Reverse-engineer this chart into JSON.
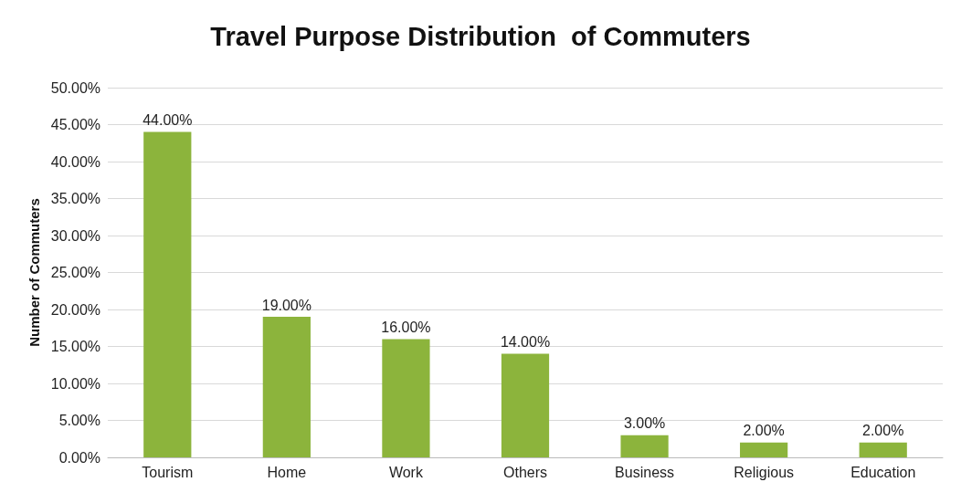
{
  "chart_data": {
    "type": "bar",
    "title": "Travel Purpose Distribution  of Commuters",
    "ylabel": "Number of Commuters",
    "categories": [
      "Tourism",
      "Home",
      "Work",
      "Others",
      "Business",
      "Religious",
      "Education"
    ],
    "values": [
      44,
      19,
      16,
      14,
      3,
      2,
      2
    ],
    "value_labels": [
      "44.00%",
      "19.00%",
      "16.00%",
      "14.00%",
      "3.00%",
      "2.00%",
      "2.00%"
    ],
    "color": "#8cb43c",
    "ylim": [
      0,
      50
    ],
    "yticks": [
      {
        "value": 0,
        "label": "0.00%"
      },
      {
        "value": 5,
        "label": "5.00%"
      },
      {
        "value": 10,
        "label": "10.00%"
      },
      {
        "value": 15,
        "label": "15.00%"
      },
      {
        "value": 20,
        "label": "20.00%"
      },
      {
        "value": 25,
        "label": "25.00%"
      },
      {
        "value": 30,
        "label": "30.00%"
      },
      {
        "value": 35,
        "label": "35.00%"
      },
      {
        "value": 40,
        "label": "40.00%"
      },
      {
        "value": 45,
        "label": "45.00%"
      },
      {
        "value": 50,
        "label": "50.00%"
      }
    ],
    "grid": "y"
  }
}
